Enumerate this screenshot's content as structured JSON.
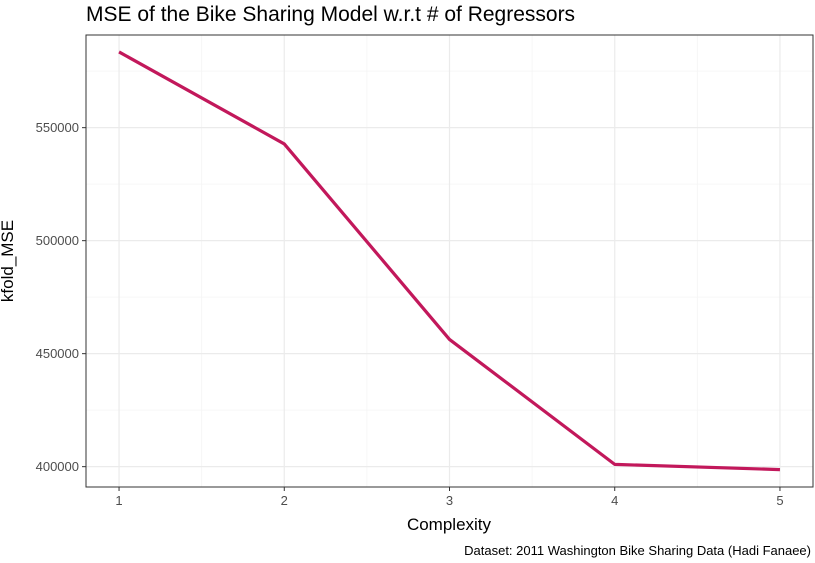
{
  "chart_data": {
    "type": "line",
    "title": "MSE of the Bike Sharing Model w.r.t # of Regressors",
    "xlabel": "Complexity",
    "ylabel": "kfold_MSE",
    "caption": "Dataset: 2011 Washington Bike Sharing Data (Hadi Fanaee)",
    "x": [
      1,
      2,
      3,
      4,
      5
    ],
    "series": [
      {
        "values": [
          583500,
          542800,
          456300,
          401000,
          398700
        ],
        "color": "#c2185b"
      }
    ],
    "xlim": [
      0.8,
      5.2
    ],
    "ylim": [
      391000,
      591000
    ],
    "x_ticks": [
      1,
      2,
      3,
      4,
      5
    ],
    "y_ticks": [
      400000,
      450000,
      500000,
      550000
    ],
    "x_tick_labels": [
      "1",
      "2",
      "3",
      "4",
      "5"
    ],
    "y_tick_labels": [
      "400000",
      "450000",
      "500000",
      "550000"
    ],
    "grid": true,
    "legend": "none"
  }
}
